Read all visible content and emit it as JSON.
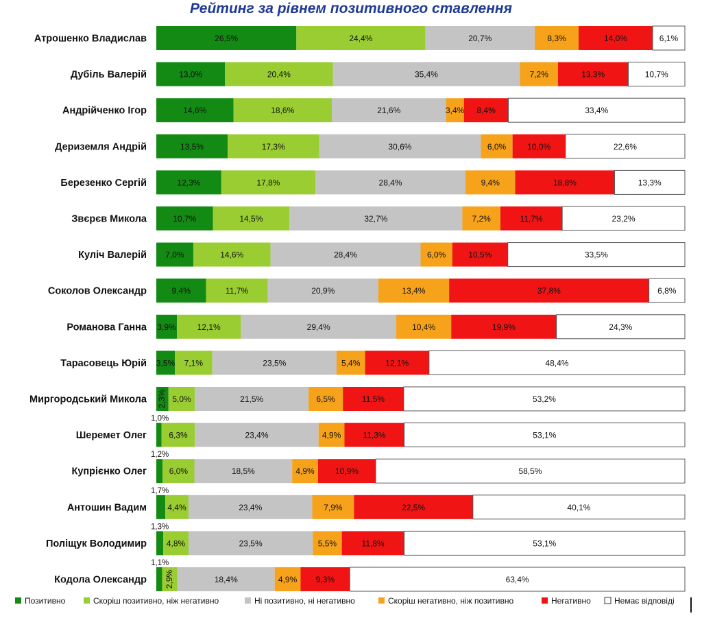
{
  "chart_data": {
    "type": "bar",
    "orientation": "horizontal",
    "stacked": true,
    "percent_stacked": true,
    "title": "Рейтинг за рівнем позитивного ставлення",
    "categories": [
      "Атрошенко Владислав",
      "Дубіль Валерій",
      "Андрійченко Ігор",
      "Дериземля Андрій",
      "Березенко Сергій",
      "Звєрєв Микола",
      "Куліч Валерій",
      "Соколов Олександр",
      "Романова Ганна",
      "Тарасовець Юрій",
      "Миргородський Микола",
      "Шеремет Олег",
      "Купрієнко Олег",
      "Антошин Вадим",
      "Поліщук Володимир",
      "Кодола Олександр"
    ],
    "series": [
      {
        "name": "Позитивно",
        "color": "#138a13",
        "values": [
          26.5,
          13.0,
          14.6,
          13.5,
          12.3,
          10.7,
          7.0,
          9.4,
          3.9,
          3.5,
          2.3,
          1.0,
          1.2,
          1.7,
          1.3,
          1.1
        ],
        "labels": [
          "26,5%",
          "13,0%",
          "14,6%",
          "13,5%",
          "12,3%",
          "10,7%",
          "7,0%",
          "9,4%",
          "3,9%",
          "3,5%",
          "2,3%",
          "1,0%",
          "1,2%",
          "1,7%",
          "1,3%",
          "1,1%"
        ]
      },
      {
        "name": "Скоріш позитивно, ніж негативно",
        "color": "#9acd32",
        "values": [
          24.4,
          20.4,
          18.6,
          17.3,
          17.8,
          14.5,
          14.6,
          11.7,
          12.1,
          7.1,
          5.0,
          6.3,
          6.0,
          4.4,
          4.8,
          2.9
        ],
        "labels": [
          "24,4%",
          "20,4%",
          "18,6%",
          "17,3%",
          "17,8%",
          "14,5%",
          "14,6%",
          "11,7%",
          "12,1%",
          "7,1%",
          "5,0%",
          "6,3%",
          "6,0%",
          "4,4%",
          "4,8%",
          "2,9%"
        ]
      },
      {
        "name": "Ні позитивно, ні негативно",
        "color": "#c4c4c4",
        "values": [
          20.7,
          35.4,
          21.6,
          30.6,
          28.4,
          32.7,
          28.4,
          20.9,
          29.4,
          23.5,
          21.5,
          23.4,
          18.5,
          23.4,
          23.5,
          18.4
        ],
        "labels": [
          "20,7%",
          "35,4%",
          "21,6%",
          "30,6%",
          "28,4%",
          "32,7%",
          "28,4%",
          "20,9%",
          "29,4%",
          "23,5%",
          "21,5%",
          "23,4%",
          "18,5%",
          "23,4%",
          "23,5%",
          "18,4%"
        ]
      },
      {
        "name": "Скоріш негативно, ніж позитивно",
        "color": "#f7a21b",
        "values": [
          8.3,
          7.2,
          3.4,
          6.0,
          9.4,
          7.2,
          6.0,
          13.4,
          10.4,
          5.4,
          6.5,
          4.9,
          4.9,
          7.9,
          5.5,
          4.9
        ],
        "labels": [
          "8,3%",
          "7,2%",
          "3,4%",
          "6,0%",
          "9,4%",
          "7,2%",
          "6,0%",
          "13,4%",
          "10,4%",
          "5,4%",
          "6,5%",
          "4,9%",
          "4,9%",
          "7,9%",
          "5,5%",
          "4,9%"
        ]
      },
      {
        "name": "Негативно",
        "color": "#f01414",
        "values": [
          14.0,
          13.3,
          8.4,
          10.0,
          18.8,
          11.7,
          10.5,
          37.8,
          19.9,
          12.1,
          11.5,
          11.3,
          10.9,
          22.5,
          11.8,
          9.3
        ],
        "labels": [
          "14,0%",
          "13,3%",
          "8,4%",
          "10,0%",
          "18,8%",
          "11,7%",
          "10,5%",
          "37,8%",
          "19,9%",
          "12,1%",
          "11,5%",
          "11,3%",
          "10,9%",
          "22,5%",
          "11,8%",
          "9,3%"
        ]
      },
      {
        "name": "Немає відповіді",
        "color": "#ffffff",
        "values": [
          6.1,
          10.7,
          33.4,
          22.6,
          13.3,
          23.2,
          33.5,
          6.8,
          24.3,
          48.4,
          53.2,
          53.1,
          58.5,
          40.1,
          53.1,
          63.4
        ],
        "labels": [
          "6,1%",
          "10,7%",
          "33,4%",
          "22,6%",
          "13,3%",
          "23,2%",
          "33,5%",
          "6,8%",
          "24,3%",
          "48,4%",
          "53,2%",
          "53,1%",
          "58,5%",
          "40,1%",
          "53,1%",
          "63,4%"
        ]
      }
    ],
    "legend_position": "bottom",
    "grid": false
  }
}
